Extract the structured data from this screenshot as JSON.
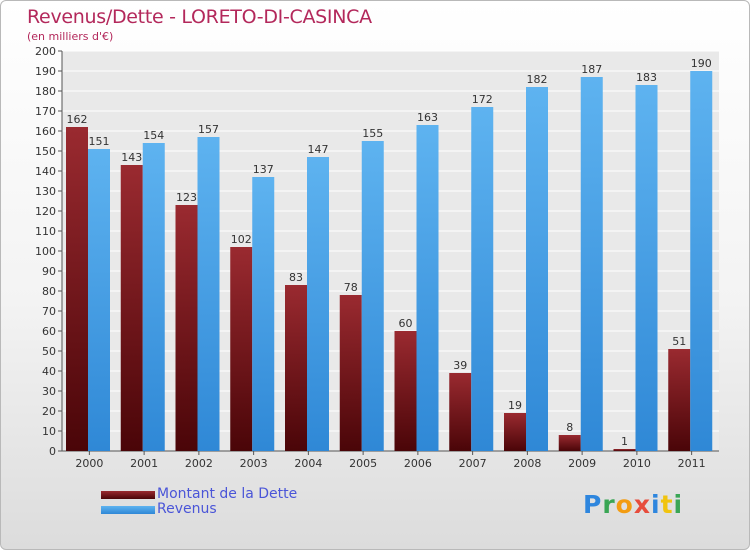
{
  "header": {
    "title": "Revenus/Dette - LORETO-DI-CASINCA",
    "subtitle": "(en milliers d'€)"
  },
  "chart_data": {
    "type": "bar",
    "categories": [
      "2000",
      "2001",
      "2002",
      "2003",
      "2004",
      "2005",
      "2006",
      "2007",
      "2008",
      "2009",
      "2010",
      "2011"
    ],
    "series": [
      {
        "name": "Montant de la Dette",
        "values": [
          162,
          143,
          123,
          102,
          83,
          78,
          60,
          39,
          19,
          8,
          1,
          51
        ],
        "color": "#7a1218"
      },
      {
        "name": "Revenus",
        "values": [
          151,
          154,
          157,
          137,
          147,
          155,
          163,
          172,
          182,
          187,
          183,
          190
        ],
        "color": "#4aa3e6"
      }
    ],
    "ylim": [
      0,
      200
    ],
    "ytick_step": 10,
    "grid": true,
    "legend": "bottom-left"
  },
  "logo": {
    "letters": [
      {
        "char": "P",
        "color": "#2e86de"
      },
      {
        "char": "r",
        "color": "#3aa655"
      },
      {
        "char": "o",
        "color": "#f39c12"
      },
      {
        "char": "x",
        "color": "#e74c3c"
      },
      {
        "char": "i",
        "color": "#2e86de"
      },
      {
        "char": "t",
        "color": "#f1c40f"
      },
      {
        "char": "i",
        "color": "#3aa655"
      }
    ]
  }
}
